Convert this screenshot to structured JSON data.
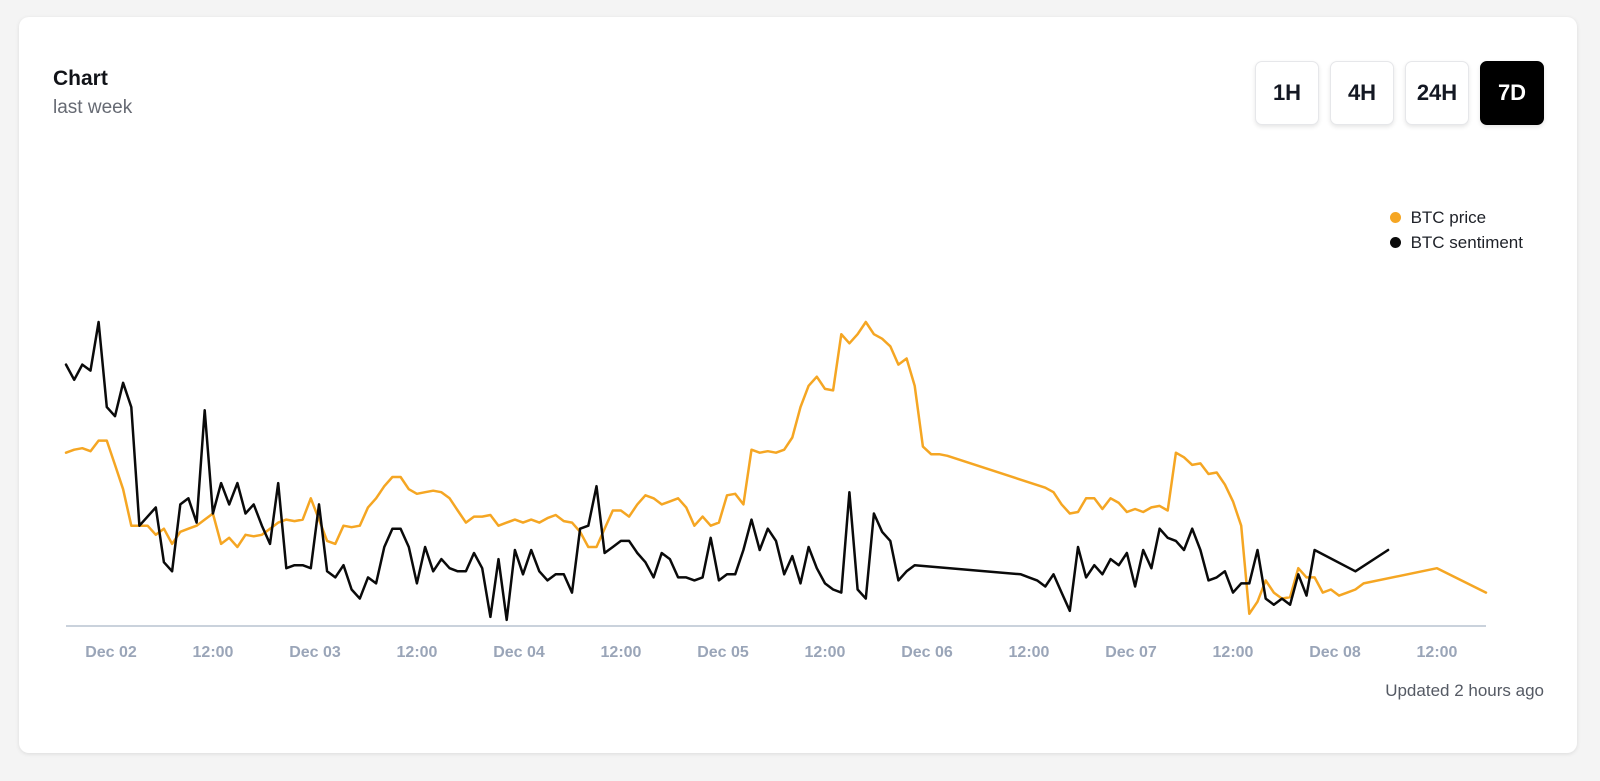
{
  "card": {
    "title": "Chart",
    "subtitle": "last week",
    "updated": "Updated 2 hours ago"
  },
  "range_buttons": [
    {
      "label": "1H",
      "active": false
    },
    {
      "label": "4H",
      "active": false
    },
    {
      "label": "24H",
      "active": false
    },
    {
      "label": "7D",
      "active": true
    }
  ],
  "colors": {
    "btc_price": "#f5a623",
    "btc_sentiment": "#0a0a0a",
    "axis": "#b9c3d0",
    "tick_label": "#9aa5b8",
    "active_button": "#000000"
  },
  "chart_data": {
    "type": "line",
    "title": "",
    "xlabel": "",
    "ylabel": "",
    "x_ticks": [
      "Dec 02",
      "12:00",
      "Dec 03",
      "12:00",
      "Dec 04",
      "12:00",
      "Dec 05",
      "12:00",
      "Dec 06",
      "12:00",
      "Dec 07",
      "12:00",
      "Dec 08",
      "12:00"
    ],
    "x_range_hours": [
      -18,
      156
    ],
    "ylim": [
      0,
      100
    ],
    "grid": false,
    "legend_position": "top-right",
    "series": [
      {
        "name": "BTC price",
        "color": "#f5a623",
        "points": [
          [
            -18,
            57
          ],
          [
            -17,
            58
          ],
          [
            -16,
            58.5
          ],
          [
            -15,
            57.5
          ],
          [
            -14,
            61
          ],
          [
            -13,
            61
          ],
          [
            -12,
            53
          ],
          [
            -11,
            45
          ],
          [
            -10,
            33
          ],
          [
            -9,
            33
          ],
          [
            -8,
            33
          ],
          [
            -7,
            30
          ],
          [
            -6,
            32
          ],
          [
            -5,
            27
          ],
          [
            -4,
            31
          ],
          [
            -3,
            32
          ],
          [
            -2,
            33
          ],
          [
            -1,
            35
          ],
          [
            0,
            37
          ],
          [
            1,
            27
          ],
          [
            2,
            29
          ],
          [
            3,
            26
          ],
          [
            4,
            30
          ],
          [
            5,
            29.5
          ],
          [
            6,
            30
          ],
          [
            7,
            32
          ],
          [
            8,
            34
          ],
          [
            9,
            35
          ],
          [
            10,
            34.5
          ],
          [
            11,
            35
          ],
          [
            12,
            42
          ],
          [
            13,
            35
          ],
          [
            14,
            28
          ],
          [
            15,
            27
          ],
          [
            16,
            33
          ],
          [
            17,
            32.5
          ],
          [
            18,
            33
          ],
          [
            19,
            39
          ],
          [
            20,
            42
          ],
          [
            21,
            46
          ],
          [
            22,
            49
          ],
          [
            23,
            49
          ],
          [
            24,
            45
          ],
          [
            25,
            43.5
          ],
          [
            26,
            44
          ],
          [
            27,
            44.5
          ],
          [
            28,
            44
          ],
          [
            29,
            42
          ],
          [
            30,
            38
          ],
          [
            31,
            34
          ],
          [
            32,
            36
          ],
          [
            33,
            36
          ],
          [
            34,
            36.5
          ],
          [
            35,
            33
          ],
          [
            36,
            34
          ],
          [
            37,
            35
          ],
          [
            38,
            34
          ],
          [
            39,
            35
          ],
          [
            40,
            34
          ],
          [
            41,
            35.5
          ],
          [
            42,
            36.5
          ],
          [
            43,
            34.5
          ],
          [
            44,
            34
          ],
          [
            45,
            31
          ],
          [
            46,
            26
          ],
          [
            47,
            26
          ],
          [
            48,
            32
          ],
          [
            49,
            38
          ],
          [
            50,
            38
          ],
          [
            51,
            36
          ],
          [
            52,
            40
          ],
          [
            53,
            43
          ],
          [
            54,
            42
          ],
          [
            55,
            40
          ],
          [
            56,
            41
          ],
          [
            57,
            42
          ],
          [
            58,
            39
          ],
          [
            59,
            33
          ],
          [
            60,
            36
          ],
          [
            61,
            33
          ],
          [
            62,
            34
          ],
          [
            63,
            43
          ],
          [
            64,
            43.5
          ],
          [
            65,
            40
          ],
          [
            66,
            58
          ],
          [
            67,
            57
          ],
          [
            68,
            57.5
          ],
          [
            69,
            57
          ],
          [
            70,
            58
          ],
          [
            71,
            62
          ],
          [
            72,
            72
          ],
          [
            73,
            79
          ],
          [
            74,
            82
          ],
          [
            75,
            78
          ],
          [
            76,
            77.5
          ],
          [
            77,
            96
          ],
          [
            78,
            93
          ],
          [
            79,
            96
          ],
          [
            80,
            100
          ],
          [
            81,
            96
          ],
          [
            82,
            94.5
          ],
          [
            83,
            92
          ],
          [
            84,
            86
          ],
          [
            85,
            88
          ],
          [
            86,
            79
          ],
          [
            87,
            59
          ],
          [
            88,
            56.5
          ],
          [
            89,
            56.5
          ],
          [
            90,
            56
          ],
          [
            102,
            45.5
          ],
          [
            103,
            44
          ],
          [
            104,
            40
          ],
          [
            105,
            37
          ],
          [
            106,
            37.5
          ],
          [
            107,
            42
          ],
          [
            108,
            42
          ],
          [
            109,
            38.5
          ],
          [
            110,
            42
          ],
          [
            111,
            40.5
          ],
          [
            112,
            37.5
          ],
          [
            113,
            38.5
          ],
          [
            114,
            37.5
          ],
          [
            115,
            39
          ],
          [
            116,
            39.5
          ],
          [
            117,
            38
          ],
          [
            118,
            57
          ],
          [
            119,
            55.5
          ],
          [
            120,
            53
          ],
          [
            121,
            53.5
          ],
          [
            122,
            50
          ],
          [
            123,
            50.5
          ],
          [
            124,
            46.5
          ],
          [
            125,
            41
          ],
          [
            126,
            33
          ],
          [
            127,
            4
          ],
          [
            128,
            8
          ],
          [
            129,
            15
          ],
          [
            130,
            11
          ],
          [
            131,
            9
          ],
          [
            132,
            9.5
          ],
          [
            133,
            19
          ],
          [
            134,
            16
          ],
          [
            135,
            16
          ],
          [
            136,
            11
          ],
          [
            137,
            12
          ],
          [
            138,
            10
          ],
          [
            139,
            11
          ],
          [
            140,
            12
          ],
          [
            141,
            14
          ],
          [
            150,
            19
          ],
          [
            156,
            11
          ]
        ]
      },
      {
        "name": "BTC sentiment",
        "color": "#0a0a0a",
        "points": [
          [
            -18,
            86
          ],
          [
            -17,
            81
          ],
          [
            -16,
            86
          ],
          [
            -15,
            84
          ],
          [
            -14,
            100
          ],
          [
            -13,
            72
          ],
          [
            -12,
            69
          ],
          [
            -11,
            80
          ],
          [
            -10,
            72
          ],
          [
            -9,
            33
          ],
          [
            -8,
            36
          ],
          [
            -7,
            39
          ],
          [
            -6,
            21
          ],
          [
            -5,
            18
          ],
          [
            -4,
            40
          ],
          [
            -3,
            42
          ],
          [
            -2,
            34
          ],
          [
            -1,
            71
          ],
          [
            0,
            37
          ],
          [
            1,
            47
          ],
          [
            2,
            40
          ],
          [
            3,
            47
          ],
          [
            4,
            37
          ],
          [
            5,
            40
          ],
          [
            6,
            33
          ],
          [
            7,
            27
          ],
          [
            8,
            47
          ],
          [
            9,
            19
          ],
          [
            10,
            20
          ],
          [
            11,
            20
          ],
          [
            12,
            19
          ],
          [
            13,
            40
          ],
          [
            14,
            18
          ],
          [
            15,
            16
          ],
          [
            16,
            20
          ],
          [
            17,
            12
          ],
          [
            18,
            9
          ],
          [
            19,
            16
          ],
          [
            20,
            14
          ],
          [
            21,
            26
          ],
          [
            22,
            32
          ],
          [
            23,
            32
          ],
          [
            24,
            26
          ],
          [
            25,
            14
          ],
          [
            26,
            26
          ],
          [
            27,
            18
          ],
          [
            28,
            22
          ],
          [
            29,
            19
          ],
          [
            30,
            18
          ],
          [
            31,
            18
          ],
          [
            32,
            24
          ],
          [
            33,
            19
          ],
          [
            34,
            3
          ],
          [
            35,
            22
          ],
          [
            36,
            2
          ],
          [
            37,
            25
          ],
          [
            38,
            17
          ],
          [
            39,
            25
          ],
          [
            40,
            18
          ],
          [
            41,
            15
          ],
          [
            42,
            17
          ],
          [
            43,
            17
          ],
          [
            44,
            11
          ],
          [
            45,
            32
          ],
          [
            46,
            33
          ],
          [
            47,
            46
          ],
          [
            48,
            24
          ],
          [
            49,
            26
          ],
          [
            50,
            28
          ],
          [
            51,
            28
          ],
          [
            52,
            24
          ],
          [
            53,
            21
          ],
          [
            54,
            16
          ],
          [
            55,
            24
          ],
          [
            56,
            22
          ],
          [
            57,
            16
          ],
          [
            58,
            16
          ],
          [
            59,
            15
          ],
          [
            60,
            16
          ],
          [
            61,
            29
          ],
          [
            62,
            15
          ],
          [
            63,
            17
          ],
          [
            64,
            17
          ],
          [
            65,
            25
          ],
          [
            66,
            35
          ],
          [
            67,
            25
          ],
          [
            68,
            32
          ],
          [
            69,
            28
          ],
          [
            70,
            17
          ],
          [
            71,
            23
          ],
          [
            72,
            14
          ],
          [
            73,
            26
          ],
          [
            74,
            19
          ],
          [
            75,
            14
          ],
          [
            76,
            12
          ],
          [
            77,
            11
          ],
          [
            78,
            44
          ],
          [
            79,
            12
          ],
          [
            80,
            9
          ],
          [
            81,
            37
          ],
          [
            82,
            31
          ],
          [
            83,
            28
          ],
          [
            84,
            15
          ],
          [
            85,
            18
          ],
          [
            86,
            20
          ],
          [
            99,
            17
          ],
          [
            100,
            16
          ],
          [
            101,
            15
          ],
          [
            102,
            13
          ],
          [
            103,
            17
          ],
          [
            104,
            11
          ],
          [
            105,
            5
          ],
          [
            106,
            26
          ],
          [
            107,
            16
          ],
          [
            108,
            20
          ],
          [
            109,
            17
          ],
          [
            110,
            22
          ],
          [
            111,
            20
          ],
          [
            112,
            24
          ],
          [
            113,
            13
          ],
          [
            114,
            25
          ],
          [
            115,
            19
          ],
          [
            116,
            32
          ],
          [
            117,
            29
          ],
          [
            118,
            28
          ],
          [
            119,
            25
          ],
          [
            120,
            32
          ],
          [
            121,
            25
          ],
          [
            122,
            15
          ],
          [
            123,
            16
          ],
          [
            124,
            18
          ],
          [
            125,
            11
          ],
          [
            126,
            14
          ],
          [
            127,
            14
          ],
          [
            128,
            25
          ],
          [
            129,
            9
          ],
          [
            130,
            7
          ],
          [
            131,
            9
          ],
          [
            132,
            7
          ],
          [
            133,
            17
          ],
          [
            134,
            10
          ],
          [
            135,
            25
          ],
          [
            140,
            18
          ],
          [
            144,
            25
          ]
        ]
      }
    ]
  }
}
